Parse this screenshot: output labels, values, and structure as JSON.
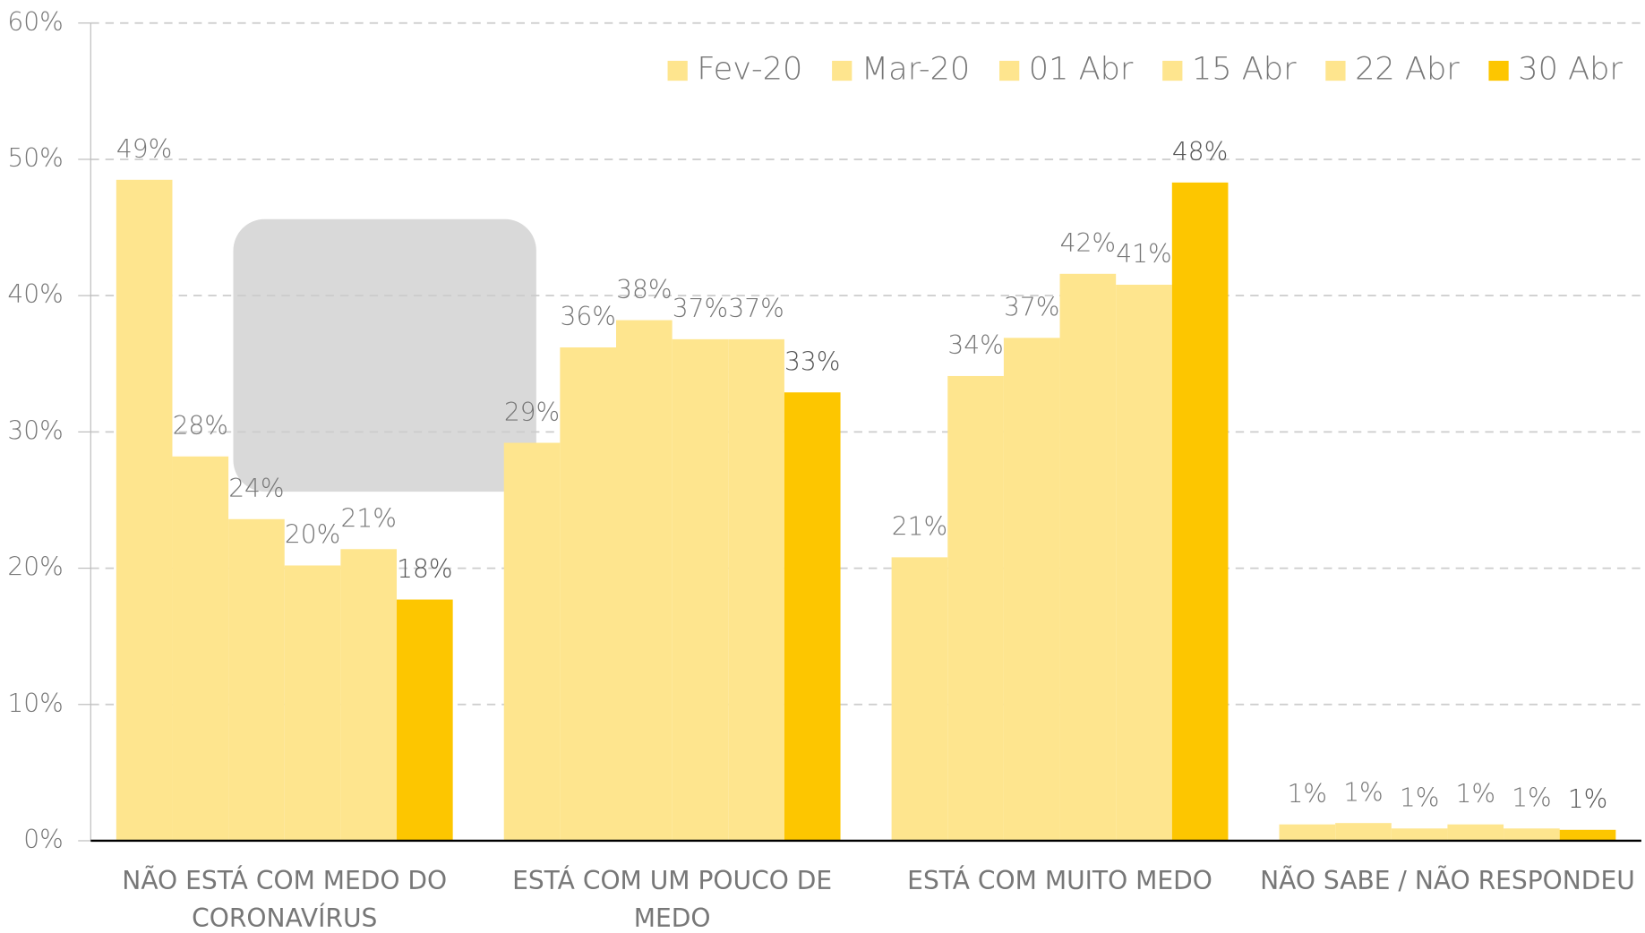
{
  "chart_data": {
    "type": "bar",
    "categories": [
      "NÃO ESTÁ COM MEDO DO CORONAVÍRUS",
      "ESTÁ COM UM POUCO DE MEDO",
      "ESTÁ COM MUITO MEDO",
      "NÃO SABE / NÃO RESPONDEU"
    ],
    "series": [
      {
        "name": "Fev-20",
        "color": "#fee58e",
        "values": [
          48.5,
          29.2,
          20.8,
          1.2
        ],
        "value_labels": [
          "49%",
          "29%",
          "21%",
          "1%"
        ]
      },
      {
        "name": "Mar-20",
        "color": "#fee58e",
        "values": [
          28.2,
          36.2,
          34.1,
          1.3
        ],
        "value_labels": [
          "28%",
          "36%",
          "34%",
          "1%"
        ]
      },
      {
        "name": "01 Abr",
        "color": "#fee58e",
        "values": [
          23.6,
          38.2,
          36.9,
          0.9
        ],
        "value_labels": [
          "24%",
          "38%",
          "37%",
          "1%"
        ]
      },
      {
        "name": "15 Abr",
        "color": "#fee58e",
        "values": [
          20.2,
          36.8,
          41.6,
          1.2
        ],
        "value_labels": [
          "20%",
          "37%",
          "42%",
          "1%"
        ]
      },
      {
        "name": "22 Abr",
        "color": "#fee58e",
        "values": [
          21.4,
          36.8,
          40.8,
          0.9
        ],
        "value_labels": [
          "21%",
          "37%",
          "41%",
          "1%"
        ]
      },
      {
        "name": "30 Abr",
        "color": "#fdc600",
        "values": [
          17.7,
          32.9,
          48.3,
          0.8
        ],
        "value_labels": [
          "18%",
          "33%",
          "48%",
          "1%"
        ]
      }
    ],
    "ylim": [
      0,
      60
    ],
    "yticks": [
      {
        "value": 0,
        "label": "0%"
      },
      {
        "value": 10,
        "label": "10%"
      },
      {
        "value": 20,
        "label": "20%"
      },
      {
        "value": 30,
        "label": "30%"
      },
      {
        "value": 40,
        "label": "40%"
      },
      {
        "value": 50,
        "label": "50%"
      },
      {
        "value": 60,
        "label": "60%"
      }
    ],
    "grid": true,
    "legend": "top-right"
  }
}
